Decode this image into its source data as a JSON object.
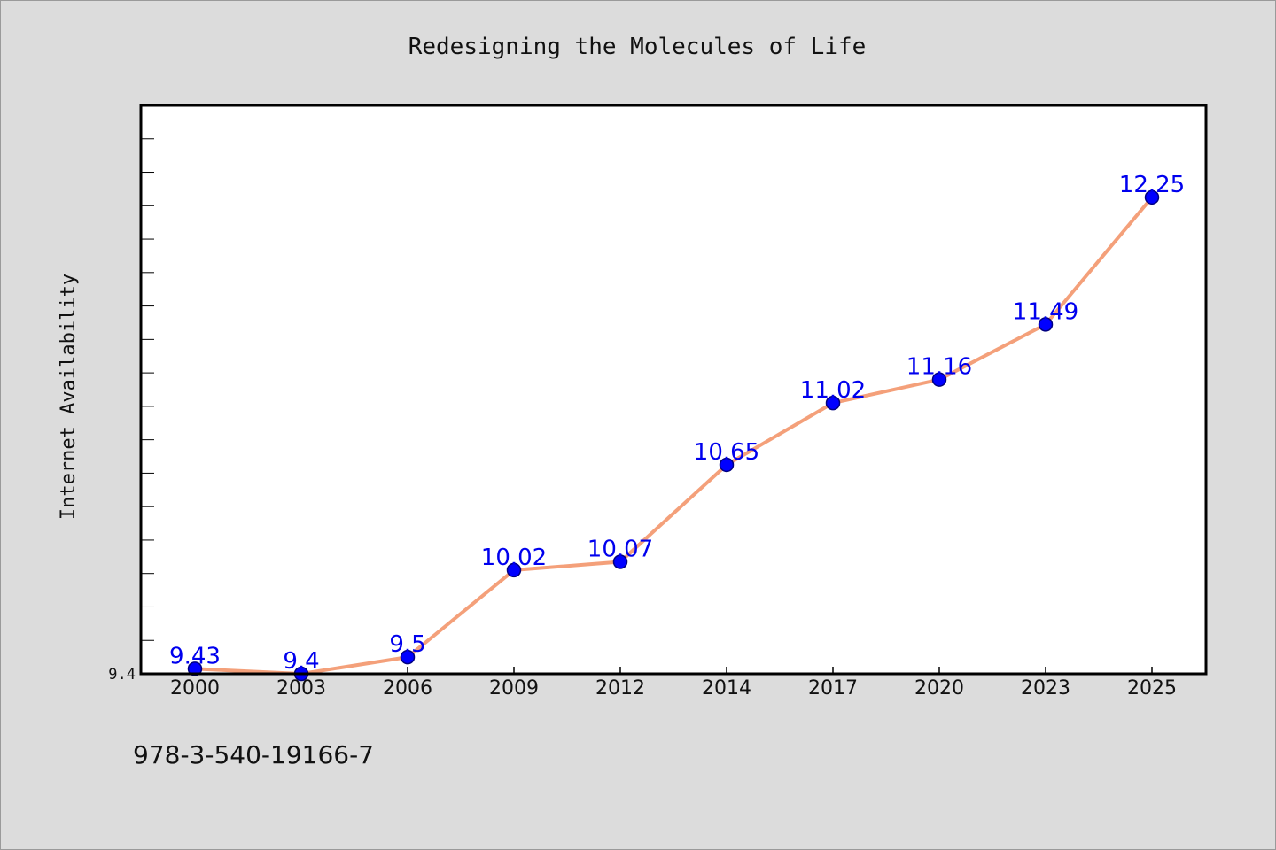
{
  "chart_data": {
    "type": "line",
    "title": "Redesigning the Molecules of Life",
    "xlabel": "",
    "ylabel": "Internet Availability",
    "categories": [
      "2000",
      "2003",
      "2006",
      "2009",
      "2012",
      "2014",
      "2017",
      "2020",
      "2023",
      "2025"
    ],
    "series": [
      {
        "values": [
          9.43,
          9.4,
          9.5,
          10.02,
          10.07,
          10.65,
          11.02,
          11.16,
          11.49,
          12.25
        ],
        "labels": [
          "9.43",
          "9.4",
          "9.5",
          "10.02",
          "10.07",
          "10.65",
          "11.02",
          "11.16",
          "11.49",
          "12.25"
        ]
      }
    ],
    "y_tick_labels": [
      "9.4"
    ],
    "ylim": [
      9.4,
      12.8
    ],
    "grid": false,
    "legend": "none",
    "colors": {
      "line": "#f4a07a",
      "marker": "#0000ff",
      "marker_edge": "#000080",
      "point_label": "#0000ee"
    }
  },
  "footnote": "978-3-540-19166-7"
}
